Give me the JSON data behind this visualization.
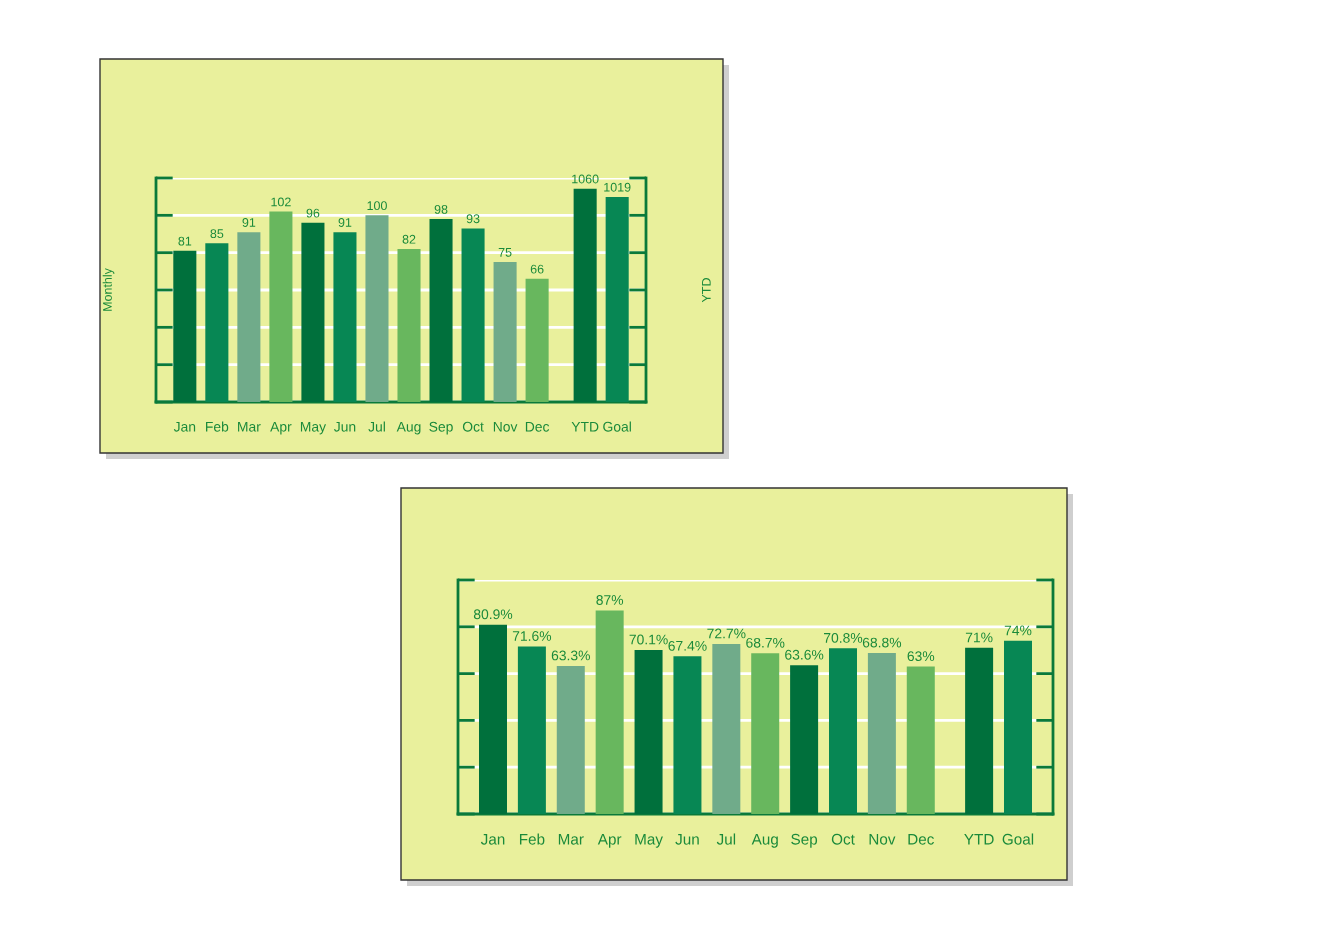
{
  "chart_data": [
    {
      "type": "bar",
      "categories": [
        "Jan",
        "Feb",
        "Mar",
        "Apr",
        "May",
        "Jun",
        "Jul",
        "Aug",
        "Sep",
        "Oct",
        "Nov",
        "Dec",
        "YTD",
        "Goal"
      ],
      "series": [
        {
          "colors": [
            "#00703c",
            "#078754",
            "#70ab8a",
            "#68b75e",
            "#00703c",
            "#078754",
            "#70ab8a",
            "#68b75e",
            "#00703c",
            "#078754",
            "#70ab8a",
            "#68b75e",
            null,
            null
          ],
          "values": [
            81,
            85,
            91,
            102,
            96,
            91,
            100,
            82,
            98,
            93,
            75,
            66,
            null,
            null
          ]
        },
        {
          "axis": "y2",
          "colors": [
            null,
            null,
            null,
            null,
            null,
            null,
            null,
            null,
            null,
            null,
            null,
            null,
            "#00703c",
            "#078754"
          ],
          "values": [
            null,
            null,
            null,
            null,
            null,
            null,
            null,
            null,
            null,
            null,
            null,
            null,
            1060,
            1019
          ]
        }
      ],
      "ylabel": "Monthly",
      "y2label": "YTD",
      "ylim": [
        0,
        120
      ],
      "yticks": [
        {
          "value": 0,
          "label": null
        },
        {
          "value": 20,
          "label": null
        },
        {
          "value": 40,
          "label": null
        },
        {
          "value": 60,
          "label": null
        },
        {
          "value": 80,
          "label": null
        },
        {
          "value": 100,
          "label": null
        },
        {
          "value": 120,
          "label": null
        }
      ],
      "grid": "y",
      "tick_labels": "x",
      "data_labels": true
    },
    {
      "type": "bar",
      "categories": [
        "Jan",
        "Feb",
        "Mar",
        "Apr",
        "May",
        "Jun",
        "Jul",
        "Aug",
        "Sep",
        "Oct",
        "Nov",
        "Dec",
        "YTD",
        "Goal"
      ],
      "values": [
        80.9,
        71.6,
        63.3,
        87,
        70.1,
        67.4,
        72.7,
        68.7,
        63.6,
        70.8,
        68.8,
        63,
        71,
        74
      ],
      "colors": [
        "#00703c",
        "#078754",
        "#70ab8a",
        "#68b75e",
        "#00703c",
        "#078754",
        "#70ab8a",
        "#68b75e",
        "#00703c",
        "#078754",
        "#70ab8a",
        "#68b75e",
        "#00703c",
        "#078754"
      ],
      "value_labels": [
        "80.9%",
        "71.6%",
        "63.3%",
        "87%",
        "70.1%",
        "67.4%",
        "72.7%",
        "68.7%",
        "63.6%",
        "70.8%",
        "68.8%",
        "63%",
        "71%",
        "74%"
      ],
      "ylim": [
        0,
        100
      ],
      "yticks": [
        {
          "value": 0,
          "label": null
        },
        {
          "value": 20,
          "label": null
        },
        {
          "value": 40,
          "label": null
        },
        {
          "value": 60,
          "label": null
        },
        {
          "value": 80,
          "label": null
        },
        {
          "value": 100,
          "label": null
        }
      ],
      "grid": "y",
      "tick_labels": "x"
    }
  ]
}
